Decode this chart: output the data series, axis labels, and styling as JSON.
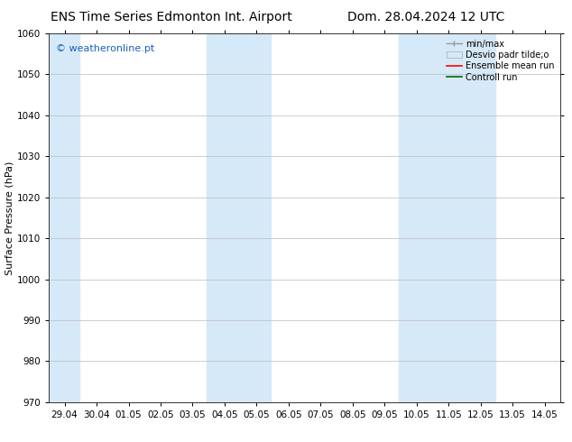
{
  "title_left": "ENS Time Series Edmonton Int. Airport",
  "title_right": "Dom. 28.04.2024 12 UTC",
  "ylabel": "Surface Pressure (hPa)",
  "ylim": [
    970,
    1060
  ],
  "yticks": [
    970,
    980,
    990,
    1000,
    1010,
    1020,
    1030,
    1040,
    1050,
    1060
  ],
  "xtick_labels": [
    "29.04",
    "30.04",
    "01.05",
    "02.05",
    "03.05",
    "04.05",
    "05.05",
    "06.05",
    "07.05",
    "08.05",
    "09.05",
    "10.05",
    "11.05",
    "12.05",
    "13.05",
    "14.05"
  ],
  "xtick_positions": [
    0,
    1,
    2,
    3,
    4,
    5,
    6,
    7,
    8,
    9,
    10,
    11,
    12,
    13,
    14,
    15
  ],
  "shaded_bands": [
    {
      "xmin": -0.5,
      "xmax": 0.35,
      "color": "#d6e9f8"
    },
    {
      "xmin": 4.35,
      "xmax": 5.35,
      "color": "#d6e9f8"
    },
    {
      "xmin": 5.35,
      "xmax": 6.35,
      "color": "#d6e9f8"
    },
    {
      "xmin": 10.35,
      "xmax": 11.35,
      "color": "#d6e9f8"
    },
    {
      "xmin": 11.35,
      "xmax": 12.35,
      "color": "#d6e9f8"
    },
    {
      "xmin": 12.35,
      "xmax": 13.35,
      "color": "#d6e9f8"
    }
  ],
  "watermark_text": "© weatheronline.pt",
  "watermark_color": "#1a5fba",
  "bg_color": "#ffffff",
  "plot_bg_color": "#ffffff",
  "grid_color": "#bbbbbb",
  "title_fontsize": 10,
  "axis_label_fontsize": 8,
  "tick_fontsize": 7.5,
  "legend_fontsize": 7,
  "xlim_lo": -0.5,
  "xlim_hi": 15.5
}
